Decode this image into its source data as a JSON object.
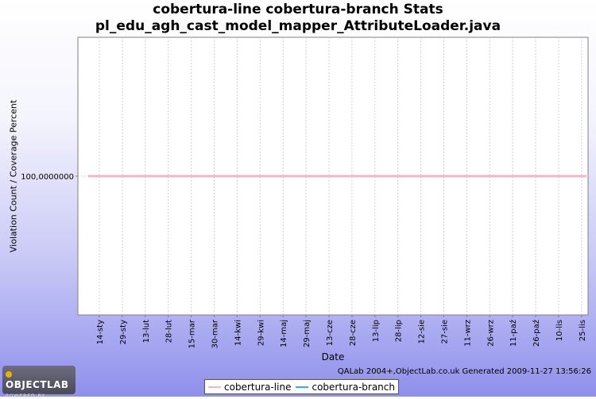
{
  "chart_data": {
    "type": "line",
    "title_line1": "cobertura-line cobertura-branch  Stats",
    "title_line2": "pl_edu_agh_cast_model_mapper_AttributeLoader.java",
    "xlabel": "Date",
    "ylabel": "Violation Count / Coverage Percent",
    "x_ticks": [
      "14-sty",
      "29-sty",
      "13-lut",
      "28-lut",
      "15-mar",
      "30-mar",
      "14-kwi",
      "29-kwi",
      "14-maj",
      "29-maj",
      "13-cze",
      "28-cze",
      "13-lip",
      "28-lip",
      "12-sie",
      "27-sie",
      "11-wrz",
      "26-wrz",
      "11-paź",
      "26-paź",
      "10-lis",
      "25-lis"
    ],
    "y_ticks": [
      {
        "value": 100,
        "label": "100,0000000"
      }
    ],
    "ylim": [
      0,
      200
    ],
    "grid": true,
    "legend_position": "bottom",
    "series": [
      {
        "name": "cobertura-line",
        "color": "#f4b6c2",
        "x_start": "14-sty",
        "x_end": "25-lis",
        "values": [
          100,
          100
        ]
      },
      {
        "name": "cobertura-branch",
        "color": "#34b4d4",
        "x_start": "14-sty",
        "x_end": "25-lis",
        "values": [
          100,
          100
        ]
      }
    ]
  },
  "footer_text": "QALab 2004+,ObjectLab.co.uk Generated 2009-11-27 13:56:26",
  "logo": {
    "main": "OBJECTLAB",
    "sub": "POWERED BY"
  }
}
